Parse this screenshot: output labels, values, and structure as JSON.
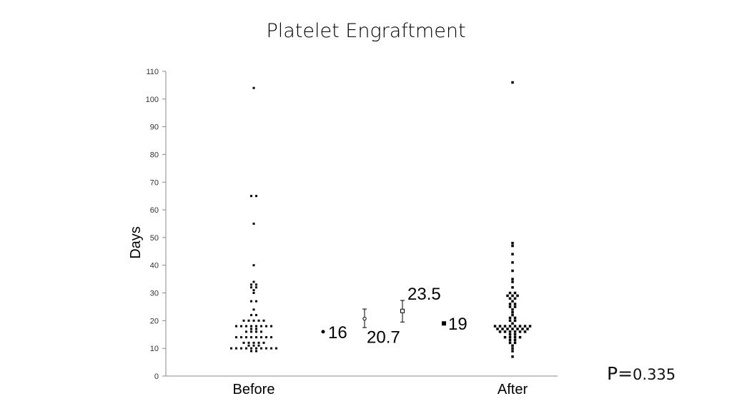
{
  "chart_data": {
    "type": "scatter",
    "title": "Platelet Engraftment",
    "ylabel": "Days",
    "ylim": [
      0,
      110
    ],
    "yticks": [
      0,
      10,
      20,
      30,
      40,
      50,
      60,
      70,
      80,
      90,
      100,
      110
    ],
    "categories": [
      "Before",
      "After"
    ],
    "series": [
      {
        "category": "Before",
        "values": [
          104,
          65,
          65,
          55,
          40,
          34,
          33,
          33,
          32,
          32,
          31,
          30,
          27,
          27,
          24,
          22,
          22,
          20,
          20,
          20,
          20,
          20,
          18,
          18,
          18,
          18,
          18,
          18,
          18,
          18,
          17,
          17,
          16,
          16,
          16,
          16,
          14,
          14,
          14,
          14,
          14,
          14,
          14,
          14,
          12,
          12,
          12,
          12,
          12,
          11,
          11,
          11,
          10,
          10,
          10,
          10,
          10,
          10,
          10,
          10,
          10,
          10,
          9,
          9
        ]
      },
      {
        "category": "After",
        "values": [
          106,
          48,
          47,
          44,
          41,
          38,
          35,
          34,
          32,
          30,
          30,
          29,
          29,
          29,
          28,
          28,
          27,
          26,
          26,
          25,
          25,
          24,
          23,
          22,
          21,
          21,
          20,
          20,
          19,
          18,
          18,
          18,
          18,
          18,
          18,
          18,
          18,
          17,
          17,
          17,
          17,
          17,
          17,
          17,
          16,
          16,
          16,
          16,
          16,
          16,
          15,
          15,
          14,
          14,
          14,
          14,
          13,
          13,
          12,
          12,
          11,
          10,
          9,
          7
        ]
      }
    ],
    "annotations": [
      {
        "label": "16",
        "value": 16,
        "marker": "dot"
      },
      {
        "label": "20.7",
        "value": 20.7,
        "marker": "circle",
        "error": [
          17.5,
          24.2
        ]
      },
      {
        "label": "23.5",
        "value": 23.5,
        "marker": "square",
        "error": [
          19.5,
          27.3
        ]
      },
      {
        "label": "19",
        "value": 19,
        "marker": "square-filled"
      }
    ]
  },
  "p_value": {
    "prefix": "P=",
    "value": "0.335"
  }
}
